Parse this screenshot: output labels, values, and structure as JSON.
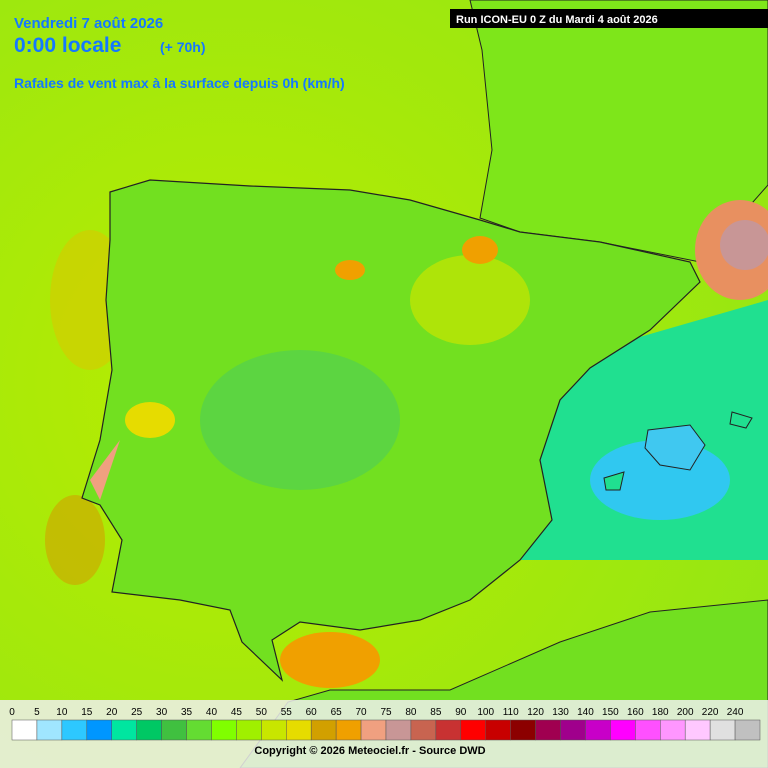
{
  "header": {
    "date": "Vendredi 7 août 2026",
    "time": "0:00 locale",
    "lead": "(+ 70h)",
    "field": "Rafales de vent max à la surface depuis 0h (km/h)"
  },
  "run": "Run ICON-EU 0 Z du Mardi 4 août 2026",
  "legend": {
    "ticks": [
      0,
      5,
      10,
      15,
      20,
      25,
      30,
      35,
      40,
      45,
      50,
      55,
      60,
      65,
      70,
      75,
      80,
      85,
      90,
      100,
      110,
      120,
      130,
      140,
      150,
      160,
      180,
      200,
      220,
      240
    ],
    "colors": [
      "#ffffff",
      "#a0e6ff",
      "#2dc8ff",
      "#0096ff",
      "#00e6a0",
      "#00c864",
      "#40c040",
      "#64dc32",
      "#80ff00",
      "#a0f000",
      "#c8e600",
      "#e6dc00",
      "#d2a000",
      "#f0a000",
      "#f0a080",
      "#c89696",
      "#c86450",
      "#c83232",
      "#ff0000",
      "#c80000",
      "#8c0000",
      "#a00050",
      "#a0008c",
      "#c800c8",
      "#ff00ff",
      "#ff50ff",
      "#ff96ff",
      "#ffc8ff",
      "#e0e0e0",
      "#c0c0c0"
    ]
  },
  "copyright": "Copyright © 2026 Meteociel.fr - Source DWD"
}
